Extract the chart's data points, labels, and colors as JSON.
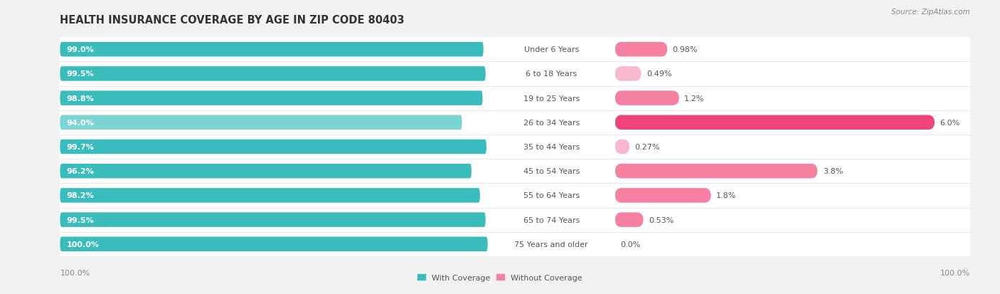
{
  "title": "HEALTH INSURANCE COVERAGE BY AGE IN ZIP CODE 80403",
  "source": "Source: ZipAtlas.com",
  "categories": [
    "Under 6 Years",
    "6 to 18 Years",
    "19 to 25 Years",
    "26 to 34 Years",
    "35 to 44 Years",
    "45 to 54 Years",
    "55 to 64 Years",
    "65 to 74 Years",
    "75 Years and older"
  ],
  "with_coverage": [
    99.0,
    99.5,
    98.8,
    94.0,
    99.7,
    96.2,
    98.2,
    99.5,
    100.0
  ],
  "without_coverage": [
    0.98,
    0.49,
    1.2,
    6.0,
    0.27,
    3.8,
    1.8,
    0.53,
    0.0
  ],
  "with_coverage_labels": [
    "99.0%",
    "99.5%",
    "98.8%",
    "94.0%",
    "99.7%",
    "96.2%",
    "98.2%",
    "99.5%",
    "100.0%"
  ],
  "without_coverage_labels": [
    "0.98%",
    "0.49%",
    "1.2%",
    "6.0%",
    "0.27%",
    "3.8%",
    "1.8%",
    "0.53%",
    "0.0%"
  ],
  "color_with": "#3BBCBC",
  "color_with_light": "#7DD4D4",
  "color_without_light": "#F9B8CC",
  "color_without_mid": "#F580A0",
  "color_without_strong": "#EE4477",
  "bg_color": "#f2f2f2",
  "row_bg": "#ffffff",
  "row_sep": "#e0e0e0",
  "title_fontsize": 10.5,
  "label_fontsize": 8,
  "value_fontsize": 8,
  "legend_fontsize": 8,
  "source_fontsize": 7.5
}
